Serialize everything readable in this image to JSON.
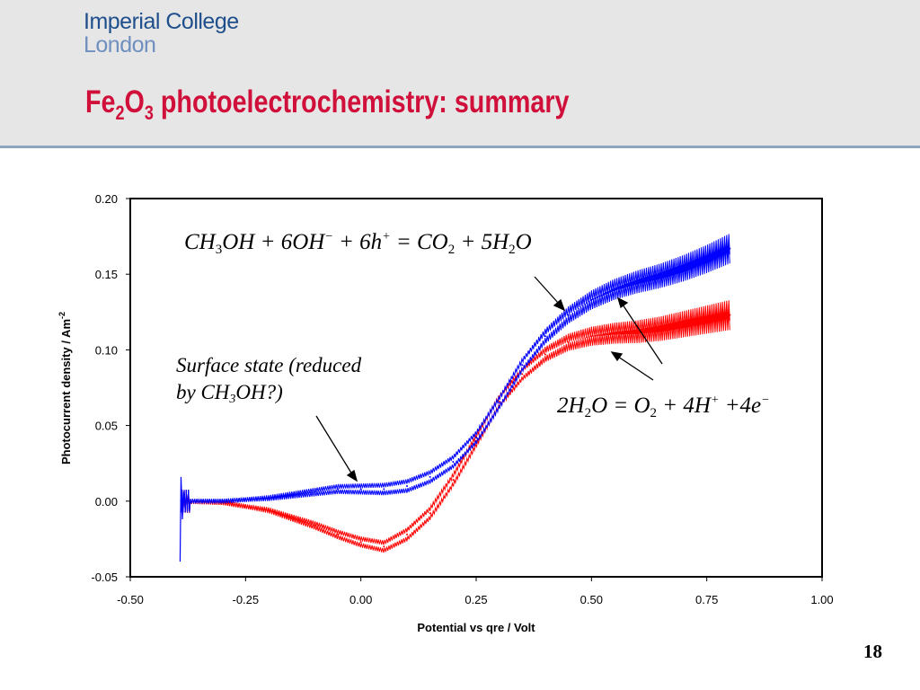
{
  "header": {
    "logo_line1": "Imperial College",
    "logo_line2": "London",
    "title_part1": "Fe",
    "title_sub1": "2",
    "title_part2": "O",
    "title_sub2": "3",
    "title_part3": " photoelectrochemistry:  summary"
  },
  "annotations": {
    "methanol_eq": {
      "a": "CH",
      "a_sub": "3",
      "b": "OH + 6OH",
      "b_sup": "−",
      "c": " + 6h",
      "c_sup": "+",
      "d": " = CO",
      "d_sub": "2",
      "e": " + 5H",
      "e_sub": "2",
      "f": "O"
    },
    "water_eq": {
      "a": "2H",
      "a_sub": "2",
      "b": "O = O",
      "b_sub": "2",
      "c": " + 4H",
      "c_sup": "+",
      "d": " +4e",
      "d_sup": "−"
    },
    "surface_state_line1": "Surface state (reduced",
    "surface_state_line2a": "by CH",
    "surface_state_sub": "3",
    "surface_state_line2b": "OH?)"
  },
  "page_number": "18",
  "chart_data": {
    "type": "line",
    "title": "",
    "xlabel": "Potential vs qre / Volt",
    "ylabel": "Photocurrent density / Am",
    "ylabel_sup": "-2",
    "xlim": [
      -0.5,
      1.0
    ],
    "ylim": [
      -0.05,
      0.2
    ],
    "xticks": [
      "-0.50",
      "-0.25",
      "0.00",
      "0.25",
      "0.50",
      "0.75",
      "1.00"
    ],
    "yticks": [
      "-0.05",
      "0.00",
      "0.05",
      "0.10",
      "0.15",
      "0.20"
    ],
    "grid": false,
    "series": [
      {
        "color": "#ff0000",
        "x": [
          -0.39,
          -0.3,
          -0.2,
          -0.1,
          -0.05,
          0.0,
          0.05,
          0.1,
          0.15,
          0.2,
          0.25,
          0.3,
          0.35,
          0.4,
          0.45,
          0.5,
          0.55,
          0.6,
          0.65,
          0.7,
          0.75,
          0.8
        ],
        "y": [
          0.0,
          -0.001,
          -0.006,
          -0.016,
          -0.022,
          -0.027,
          -0.03,
          -0.022,
          -0.008,
          0.014,
          0.04,
          0.066,
          0.084,
          0.097,
          0.105,
          0.109,
          0.111,
          0.112,
          0.114,
          0.117,
          0.12,
          0.123
        ]
      },
      {
        "color": "#0000ff",
        "x": [
          -0.39,
          -0.3,
          -0.2,
          -0.1,
          -0.05,
          0.0,
          0.05,
          0.1,
          0.15,
          0.2,
          0.25,
          0.3,
          0.35,
          0.4,
          0.45,
          0.5,
          0.55,
          0.6,
          0.65,
          0.7,
          0.75,
          0.8
        ],
        "y": [
          0.0,
          0.0,
          0.002,
          0.006,
          0.008,
          0.008,
          0.008,
          0.01,
          0.016,
          0.026,
          0.042,
          0.065,
          0.09,
          0.109,
          0.123,
          0.133,
          0.14,
          0.145,
          0.149,
          0.154,
          0.16,
          0.167
        ]
      }
    ]
  }
}
